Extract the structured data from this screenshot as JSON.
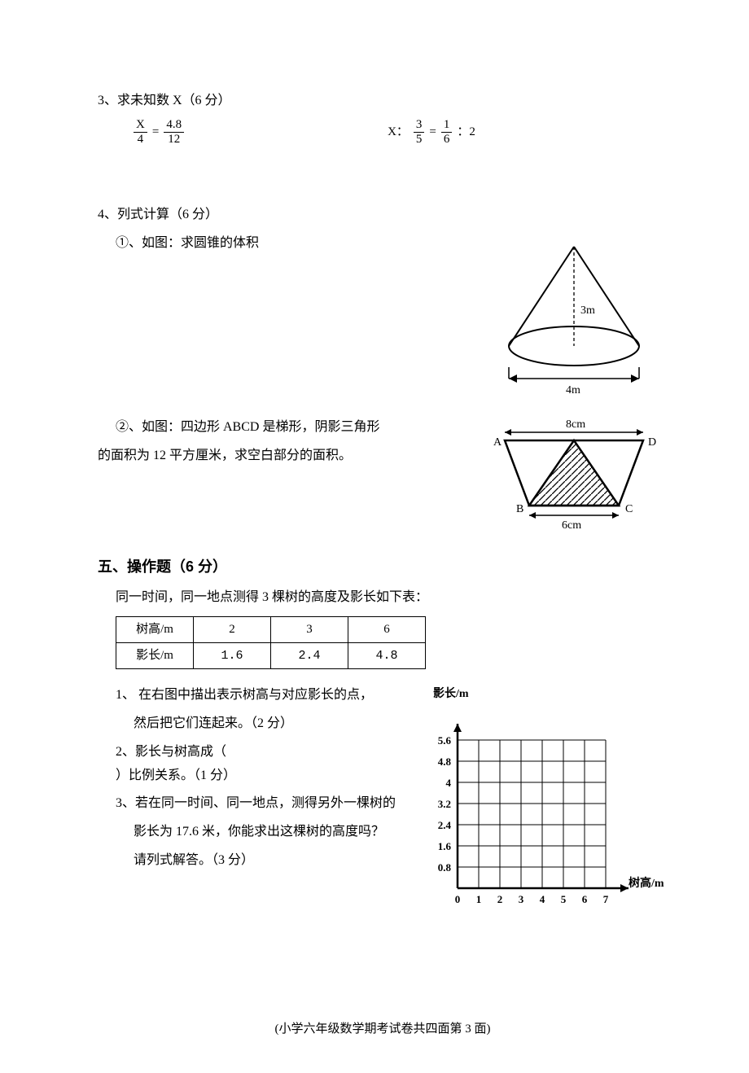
{
  "q3": {
    "title": "3、求未知数 X（6 分）",
    "eq1": {
      "lhs_num": "X",
      "lhs_den": "4",
      "eq": "=",
      "rhs_num": "4.8",
      "rhs_den": "12"
    },
    "eq2": {
      "prefix": "X：",
      "a_num": "3",
      "a_den": "5",
      "eq": "=",
      "b_num": "1",
      "b_den": "6",
      "suffix": "：2"
    }
  },
  "q4": {
    "title": "4、列式计算（6 分）",
    "sub1": "①、如图：求圆锥的体积",
    "sub2a": "②、如图：四边形 ABCD 是梯形，阴影三角形",
    "sub2b": "的面积为 12 平方厘米，求空白部分的面积。",
    "cone": {
      "height_label": "3m",
      "base_label": "4m",
      "stroke": "#000000",
      "viewbox_w": 230,
      "viewbox_h": 200
    },
    "trapezoid": {
      "top_label": "8cm",
      "bottom_label": "6cm",
      "A": "A",
      "B": "B",
      "C": "C",
      "D": "D",
      "stroke": "#000000",
      "viewbox_w": 230,
      "viewbox_h": 145
    }
  },
  "section5": {
    "heading": "五、操作题（6 分）",
    "intro": "同一时间，同一地点测得 3 棵树的高度及影长如下表：",
    "table": {
      "head": [
        "树高/m",
        "2",
        "3",
        "6"
      ],
      "row": [
        "影长/m",
        "1.6",
        "2.4",
        "4.8"
      ]
    },
    "p1a": "1、 在右图中描出表示树高与对应影长的点，",
    "p1b": "然后把它们连起来。（2 分）",
    "p2": "2、影长与树高成（",
    "p2suffix": "）比例关系。（1 分）",
    "p3a": "3、若在同一时间、同一地点，测得另外一棵树的",
    "p3b": "影长为 17.6 米，你能求出这棵树的高度吗？",
    "p3c": "请列式解答。（3 分）",
    "chart": {
      "y_label": "影长/m",
      "x_label": "树高/m",
      "y_ticks": [
        "5.6",
        "4.8",
        "4",
        "3.2",
        "2.4",
        "1.6",
        "0.8"
      ],
      "x_ticks": [
        "0",
        "1",
        "2",
        "3",
        "4",
        "5",
        "6",
        "7"
      ],
      "grid_color": "#000000",
      "viewbox_w": 300,
      "viewbox_h": 260
    }
  },
  "footer": "(小学六年级数学期考试卷共四面第 3 面)"
}
